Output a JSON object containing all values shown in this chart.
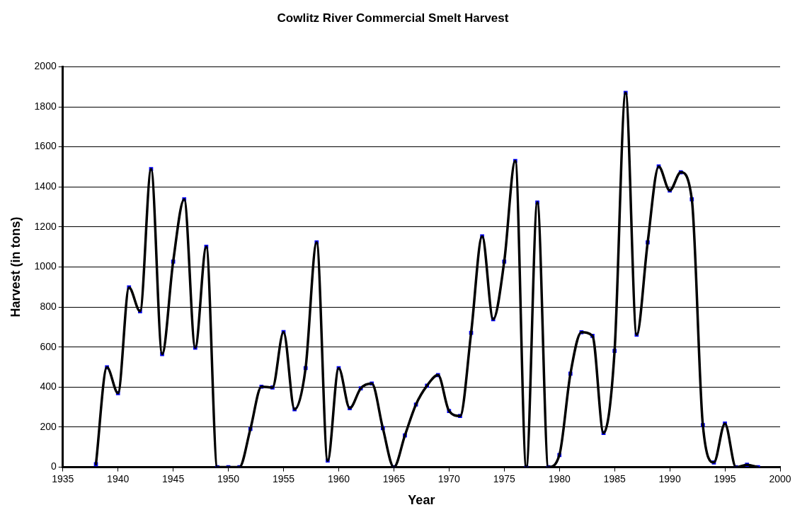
{
  "chart_data": {
    "type": "line",
    "title": "Cowlitz River Commercial Smelt Harvest",
    "xlabel": "Year",
    "ylabel": "Harvest (in tons)",
    "x": [
      1938,
      1939,
      1940,
      1941,
      1942,
      1943,
      1944,
      1945,
      1946,
      1947,
      1948,
      1949,
      1950,
      1951,
      1952,
      1953,
      1954,
      1955,
      1956,
      1957,
      1958,
      1959,
      1960,
      1961,
      1962,
      1963,
      1964,
      1965,
      1966,
      1967,
      1968,
      1969,
      1970,
      1971,
      1972,
      1973,
      1974,
      1975,
      1976,
      1977,
      1978,
      1979,
      1980,
      1981,
      1982,
      1983,
      1984,
      1985,
      1986,
      1987,
      1988,
      1989,
      1990,
      1991,
      1992,
      1993,
      1994,
      1995,
      1996,
      1997,
      1998
    ],
    "series": [
      {
        "type": "line",
        "color": "#000000",
        "marker": "none",
        "values": [
          15,
          499,
          370,
          898,
          779,
          1489,
          565,
          1027,
          1338,
          597,
          1101,
          0,
          0,
          0,
          191,
          402,
          398,
          675,
          289,
          495,
          1123,
          33,
          495,
          295,
          394,
          418,
          195,
          0,
          159,
          313,
          407,
          460,
          281,
          256,
          671,
          1153,
          739,
          1027,
          1530,
          0,
          1322,
          0,
          61,
          467,
          674,
          656,
          171,
          581,
          1870,
          662,
          1123,
          1502,
          1382,
          1473,
          1338,
          210,
          24,
          218,
          0,
          12,
          0
        ]
      },
      {
        "type": "scatter",
        "color": "#0000ff",
        "marker": "square",
        "values": [
          15,
          499,
          370,
          898,
          779,
          1489,
          565,
          1027,
          1338,
          597,
          1101,
          0,
          0,
          0,
          191,
          402,
          398,
          675,
          289,
          495,
          1123,
          33,
          495,
          295,
          394,
          418,
          195,
          0,
          159,
          313,
          407,
          460,
          281,
          256,
          671,
          1153,
          739,
          1027,
          1530,
          0,
          1322,
          0,
          61,
          467,
          674,
          656,
          171,
          581,
          1870,
          662,
          1123,
          1502,
          1382,
          1473,
          1338,
          210,
          24,
          218,
          0,
          12,
          0
        ]
      }
    ],
    "xlim": [
      1935,
      2000
    ],
    "xticks": [
      1935,
      1940,
      1945,
      1950,
      1955,
      1960,
      1965,
      1970,
      1975,
      1980,
      1985,
      1990,
      1995,
      2000
    ],
    "ylim": [
      0,
      2000
    ],
    "yticks": [
      0,
      200,
      400,
      600,
      800,
      1000,
      1200,
      1400,
      1600,
      1800,
      2000
    ],
    "grid": "y",
    "legend": false
  }
}
